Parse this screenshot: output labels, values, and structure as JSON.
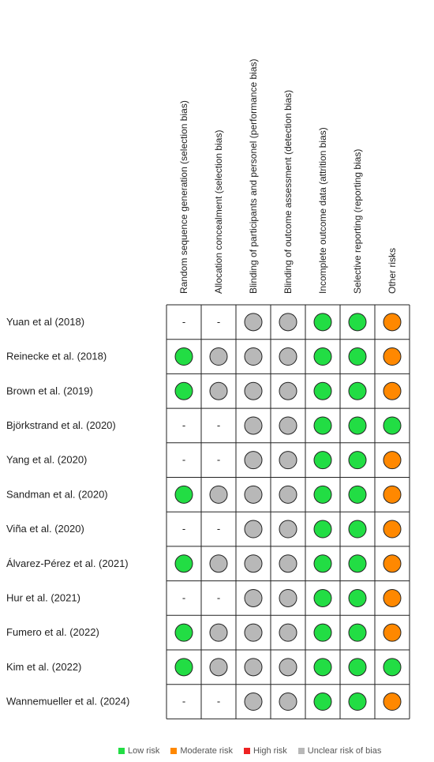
{
  "chart_data": {
    "type": "table",
    "domains": [
      "Random sequence generation (selection bias)",
      "Allocation concealment (selection bias)",
      "Blinding of participants and personel (performance bias)",
      "Blinding of outcome assessment (detection bias)",
      "Incomplete outcome data (attrition bias)",
      "Selective reporting (reporting bias)",
      "Other risks"
    ],
    "studies": [
      {
        "name": "Yuan et al (2018)",
        "ratings": [
          "none",
          "none",
          "unclear",
          "unclear",
          "low",
          "low",
          "moderate"
        ]
      },
      {
        "name": "Reinecke et al. (2018)",
        "ratings": [
          "low",
          "unclear",
          "unclear",
          "unclear",
          "low",
          "low",
          "moderate"
        ]
      },
      {
        "name": "Brown et al. (2019)",
        "ratings": [
          "low",
          "unclear",
          "unclear",
          "unclear",
          "low",
          "low",
          "moderate"
        ]
      },
      {
        "name": "Björkstrand et al. (2020)",
        "ratings": [
          "none",
          "none",
          "unclear",
          "unclear",
          "low",
          "low",
          "low"
        ]
      },
      {
        "name": "Yang et al. (2020)",
        "ratings": [
          "none",
          "none",
          "unclear",
          "unclear",
          "low",
          "low",
          "moderate"
        ]
      },
      {
        "name": "Sandman et al. (2020)",
        "ratings": [
          "low",
          "unclear",
          "unclear",
          "unclear",
          "low",
          "low",
          "moderate"
        ]
      },
      {
        "name": "Viña et al. (2020)",
        "ratings": [
          "none",
          "none",
          "unclear",
          "unclear",
          "low",
          "low",
          "moderate"
        ]
      },
      {
        "name": "Álvarez-Pérez et al. (2021)",
        "ratings": [
          "low",
          "unclear",
          "unclear",
          "unclear",
          "low",
          "low",
          "moderate"
        ]
      },
      {
        "name": "Hur et al. (2021)",
        "ratings": [
          "none",
          "none",
          "unclear",
          "unclear",
          "low",
          "low",
          "moderate"
        ]
      },
      {
        "name": "Fumero et al. (2022)",
        "ratings": [
          "low",
          "unclear",
          "unclear",
          "unclear",
          "low",
          "low",
          "moderate"
        ]
      },
      {
        "name": "Kim et al. (2022)",
        "ratings": [
          "low",
          "unclear",
          "unclear",
          "unclear",
          "low",
          "low",
          "low"
        ]
      },
      {
        "name": "Wannemueller et al. (2024)",
        "ratings": [
          "none",
          "none",
          "unclear",
          "unclear",
          "low",
          "low",
          "moderate"
        ]
      }
    ],
    "no_rating_symbol": "-",
    "legend": [
      {
        "key": "low",
        "label": "Low risk",
        "color": "#22dd44"
      },
      {
        "key": "moderate",
        "label": "Moderate risk",
        "color": "#ff8800"
      },
      {
        "key": "high",
        "label": "High risk",
        "color": "#ee2222"
      },
      {
        "key": "unclear",
        "label": "Unclear risk of bias",
        "color": "#b8b8b8"
      }
    ]
  }
}
